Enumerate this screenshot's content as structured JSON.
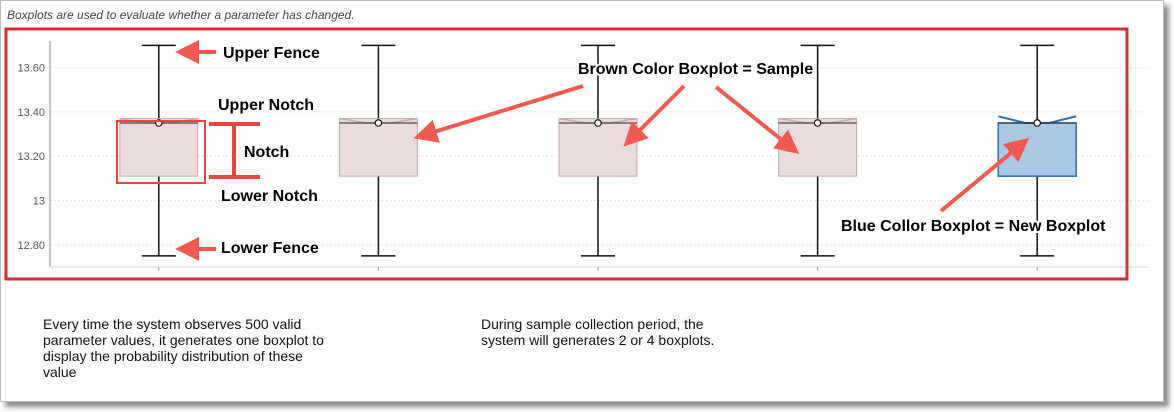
{
  "caption": "Boxplots are used to evaluate whether a parameter has changed.",
  "notes": {
    "left": "Every time the system observes 500 valid parameter values, it generates one boxplot to display the probability distribution of these value",
    "right": "During sample collection period, the system will generates 2 or 4 boxplots."
  },
  "annotations": {
    "upper_fence": "Upper Fence",
    "upper_notch": "Upper Notch",
    "notch": "Notch",
    "lower_notch": "Lower Notch",
    "lower_fence": "Lower Fence",
    "brown": "Brown Color Boxplot = Sample",
    "blue": "Blue Collor Boxplot = New Boxplot"
  },
  "colors": {
    "sample_fill": "#eadcdc",
    "sample_stroke": "#c9a9a9",
    "new_fill": "#a9c8e3",
    "new_stroke": "#2a6fb0",
    "highlight": "#d92b36",
    "arrow": "#f05a50"
  },
  "chart_data": {
    "type": "boxplot",
    "ylim": [
      12.7,
      13.72
    ],
    "y_ticks": [
      12.8,
      13,
      13.2,
      13.4,
      13.6
    ],
    "y_tick_labels": [
      "12.80",
      "13",
      "13.20",
      "13.40",
      "13.60"
    ],
    "grid": true,
    "boxes": [
      {
        "kind": "sample",
        "lower_fence": 12.75,
        "q1": 13.11,
        "lower_notch": 13.33,
        "median": 13.35,
        "upper_notch": 13.37,
        "q3": 13.37,
        "upper_fence": 13.7
      },
      {
        "kind": "sample",
        "lower_fence": 12.75,
        "q1": 13.11,
        "lower_notch": 13.33,
        "median": 13.35,
        "upper_notch": 13.37,
        "q3": 13.37,
        "upper_fence": 13.7
      },
      {
        "kind": "sample",
        "lower_fence": 12.75,
        "q1": 13.11,
        "lower_notch": 13.33,
        "median": 13.35,
        "upper_notch": 13.37,
        "q3": 13.37,
        "upper_fence": 13.7
      },
      {
        "kind": "sample",
        "lower_fence": 12.75,
        "q1": 13.11,
        "lower_notch": 13.33,
        "median": 13.35,
        "upper_notch": 13.37,
        "q3": 13.37,
        "upper_fence": 13.7
      },
      {
        "kind": "new",
        "lower_fence": 12.75,
        "q1": 13.11,
        "lower_notch": 13.33,
        "median": 13.35,
        "upper_notch": 13.38,
        "q3": 13.35,
        "upper_fence": 13.7
      }
    ]
  }
}
